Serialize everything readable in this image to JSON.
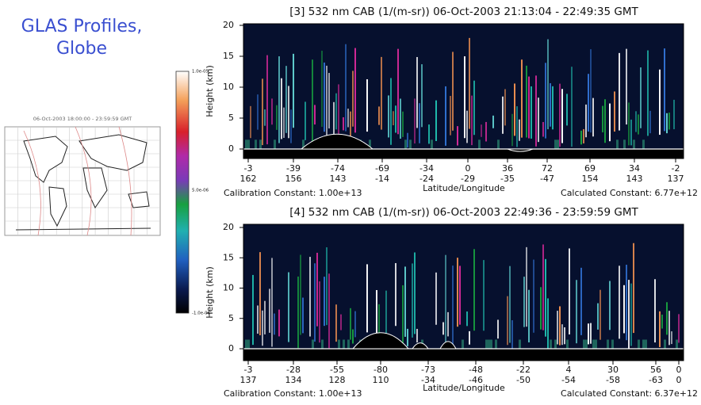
{
  "title": "GLAS Profiles, Globe",
  "map": {
    "caption": "06-Oct-2003 18:00:00 - 23:59:59 GMT"
  },
  "colorbar": {
    "labels": [
      "1.0e-05",
      "5.0e-06",
      "-1.0e-06"
    ]
  },
  "panels": [
    {
      "title": "[3]  532 nm CAB (1/(m-sr)) 06-Oct-2003 21:13:04 - 22:49:35 GMT",
      "y_label": "Height (km)",
      "y_ticks": [
        0,
        5,
        10,
        15,
        20
      ],
      "x_ticks": [
        {
          "lat": "-3",
          "lon": "162"
        },
        {
          "lat": "-39",
          "lon": "156"
        },
        {
          "lat": "-74",
          "lon": "143"
        },
        {
          "lat": "-69",
          "lon": "-14"
        },
        {
          "lat": "-34",
          "lon": "-24"
        },
        {
          "lat": "0",
          "lon": "-29"
        },
        {
          "lat": "36",
          "lon": "-35"
        },
        {
          "lat": "72",
          "lon": "-47"
        },
        {
          "lat": "69",
          "lon": "154"
        },
        {
          "lat": "34",
          "lon": "143"
        },
        {
          "lat": "-2",
          "lon": "137"
        }
      ],
      "x_label": "Latitude/Longitude",
      "calibration": "Calibration Constant: 1.00e+13",
      "calculated": "Calculated Constant: 6.77e+12"
    },
    {
      "title": "[4]  532 nm CAB (1/(m-sr)) 06-Oct-2003 22:49:36 - 23:59:59 GMT",
      "y_label": "Height (km)",
      "y_ticks": [
        0,
        5,
        10,
        15,
        20
      ],
      "x_ticks": [
        {
          "lat": "-3",
          "lon": "137"
        },
        {
          "lat": "-28",
          "lon": "134"
        },
        {
          "lat": "-55",
          "lon": "128"
        },
        {
          "lat": "-80",
          "lon": "110"
        },
        {
          "lat": "-73",
          "lon": "-34"
        },
        {
          "lat": "-48",
          "lon": "-46"
        },
        {
          "lat": "-22",
          "lon": "-50"
        },
        {
          "lat": "4",
          "lon": "-54"
        },
        {
          "lat": "30",
          "lon": "-58"
        },
        {
          "lat": "56",
          "lon": "-63"
        },
        {
          "lat": "0",
          "lon": "0"
        }
      ],
      "x_label": "Latitude/Longitude",
      "calibration": "Calibration Constant: 1.00e+13",
      "calculated": "Calculated Constant: 6.37e+12"
    }
  ]
}
